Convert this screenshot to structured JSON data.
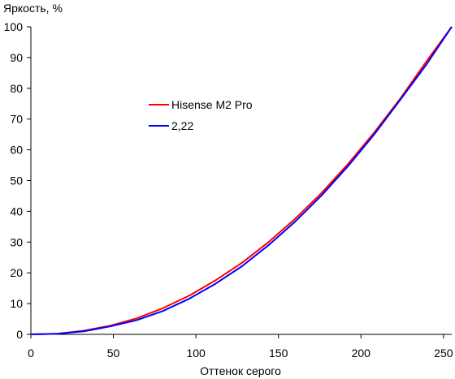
{
  "chart_data": {
    "type": "line",
    "title": "",
    "xlabel": "Оттенок серого",
    "ylabel": "Яркость, %",
    "xlim": [
      0,
      255
    ],
    "ylim": [
      0,
      100
    ],
    "x_ticks": [
      0,
      50,
      100,
      150,
      200,
      250
    ],
    "y_ticks": [
      0,
      10,
      20,
      30,
      40,
      50,
      60,
      70,
      80,
      90,
      100
    ],
    "x_tick_labels": [
      "0",
      "50",
      "100",
      "150",
      "200",
      "250"
    ],
    "y_tick_labels": [
      "0",
      "10",
      "20",
      "30",
      "40",
      "50",
      "60",
      "70",
      "80",
      "90",
      "100"
    ],
    "grid": false,
    "legend_position": "upper-left-center",
    "series": [
      {
        "name": "Hisense M2 Pro",
        "color": "#ff0000",
        "x": [
          0,
          16,
          32,
          48,
          64,
          80,
          96,
          112,
          128,
          144,
          160,
          176,
          192,
          208,
          224,
          240,
          255
        ],
        "y": [
          0,
          0.2,
          1.2,
          2.8,
          5.2,
          8.5,
          12.6,
          17.6,
          23.3,
          30.0,
          37.5,
          45.9,
          55.3,
          65.6,
          76.8,
          89.0,
          100
        ]
      },
      {
        "name": "2,22",
        "color": "#0000ff",
        "x": [
          0,
          16,
          32,
          48,
          64,
          80,
          96,
          112,
          128,
          144,
          160,
          176,
          192,
          208,
          224,
          240,
          255
        ],
        "y": [
          0,
          0.2,
          1.0,
          2.6,
          4.6,
          7.6,
          11.6,
          16.5,
          22.2,
          29.0,
          36.6,
          45.1,
          54.6,
          65.0,
          76.4,
          88.0,
          100
        ]
      }
    ]
  }
}
